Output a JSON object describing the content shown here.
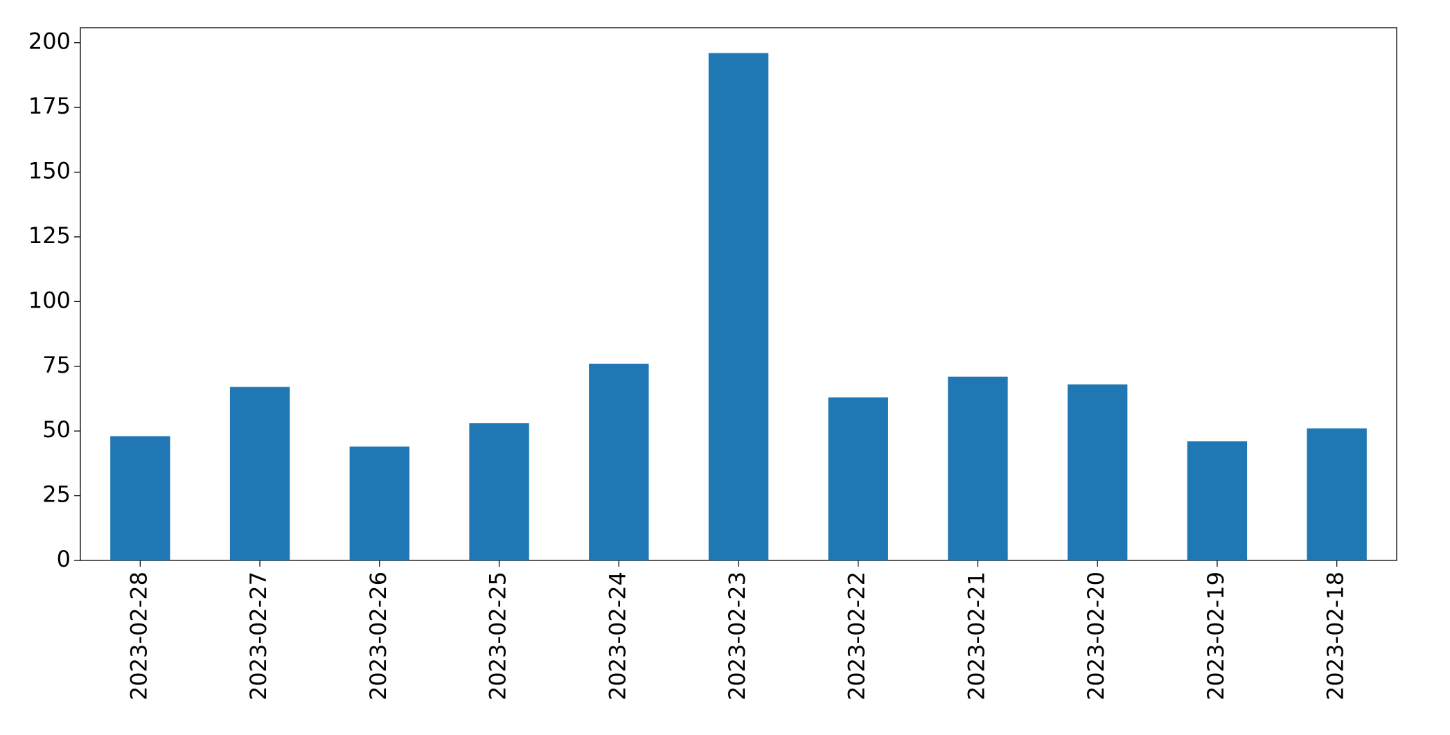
{
  "chart_data": {
    "type": "bar",
    "categories": [
      "2023-02-28",
      "2023-02-27",
      "2023-02-26",
      "2023-02-25",
      "2023-02-24",
      "2023-02-23",
      "2023-02-22",
      "2023-02-21",
      "2023-02-20",
      "2023-02-19",
      "2023-02-18"
    ],
    "values": [
      48,
      67,
      44,
      53,
      76,
      196,
      63,
      71,
      68,
      46,
      51
    ],
    "color": "#1f77b4",
    "ylim": [
      0,
      205.8
    ],
    "yticks": [
      0,
      25,
      50,
      75,
      100,
      125,
      150,
      175,
      200
    ],
    "grid": false
  }
}
